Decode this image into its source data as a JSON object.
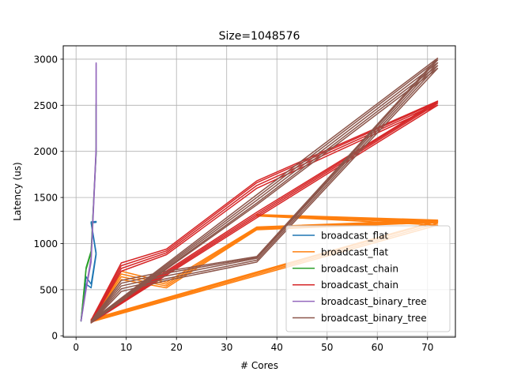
{
  "chart_data": {
    "type": "line",
    "title": "Size=1048576",
    "xlabel": "# Cores",
    "ylabel": "Latency (us)",
    "xlim": [
      -2.55,
      75.55
    ],
    "ylim": [
      -15,
      3145
    ],
    "xticks": [
      0,
      10,
      20,
      30,
      40,
      50,
      60,
      70
    ],
    "yticks": [
      0,
      500,
      1000,
      1500,
      2000,
      2500,
      3000
    ],
    "grid": true,
    "legend_position": "lower-right",
    "series": [
      {
        "name": "broadcast_flat",
        "color": "#1f77b4",
        "lines": [
          {
            "x": [
              1,
              2,
              3,
              4,
              3,
              4
            ],
            "y": [
              160,
              560,
              520,
              880,
              1225,
              1230
            ]
          },
          {
            "x": [
              1,
              2,
              3,
              4,
              3,
              4
            ],
            "y": [
              170,
              640,
              560,
              900,
              1235,
              1240
            ]
          }
        ]
      },
      {
        "name": "broadcast_flat",
        "color": "#ff7f0e",
        "lines": [
          {
            "x": [
              3,
              9,
              18,
              36,
              72,
              36,
              72,
              3
            ],
            "y": [
              140,
              610,
              520,
              1150,
              1230,
              1300,
              1200,
              150
            ]
          },
          {
            "x": [
              3,
              9,
              18,
              36,
              72,
              36,
              72,
              3
            ],
            "y": [
              145,
              640,
              540,
              1160,
              1240,
              1305,
              1220,
              160
            ]
          },
          {
            "x": [
              3,
              9,
              18,
              36,
              72,
              36,
              72,
              3
            ],
            "y": [
              150,
              670,
              560,
              1170,
              1250,
              1310,
              1240,
              170
            ]
          },
          {
            "x": [
              3,
              9,
              18,
              36,
              72,
              36,
              72,
              3
            ],
            "y": [
              155,
              700,
              580,
              1180,
              1255,
              1315,
              1250,
              180
            ]
          }
        ]
      },
      {
        "name": "broadcast_chain",
        "color": "#2ca02c",
        "lines": [
          {
            "x": [
              1,
              2,
              3,
              4,
              4
            ],
            "y": [
              160,
              720,
              900,
              1980,
              2500
            ]
          },
          {
            "x": [
              1,
              2,
              3,
              4,
              4
            ],
            "y": [
              170,
              740,
              920,
              2000,
              2520
            ]
          }
        ]
      },
      {
        "name": "broadcast_chain",
        "color": "#d62728",
        "lines": [
          {
            "x": [
              3,
              9,
              18,
              36,
              72,
              36,
              3
            ],
            "y": [
              140,
              700,
              880,
              1600,
              2500,
              1280,
              140
            ]
          },
          {
            "x": [
              3,
              9,
              18,
              36,
              72,
              36,
              3
            ],
            "y": [
              150,
              730,
              900,
              1630,
              2520,
              1300,
              150
            ]
          },
          {
            "x": [
              3,
              9,
              18,
              36,
              72,
              36,
              3
            ],
            "y": [
              160,
              760,
              920,
              1660,
              2535,
              1320,
              160
            ]
          },
          {
            "x": [
              3,
              9,
              18,
              36,
              72,
              36,
              3
            ],
            "y": [
              170,
              790,
              940,
              1680,
              2545,
              1340,
              170
            ]
          }
        ]
      },
      {
        "name": "broadcast_binary_tree",
        "color": "#9467bd",
        "lines": [
          {
            "x": [
              1,
              2,
              3,
              4,
              4
            ],
            "y": [
              160,
              500,
              800,
              2000,
              2950
            ]
          },
          {
            "x": [
              1,
              2,
              3,
              4,
              4
            ],
            "y": [
              170,
              520,
              850,
              2050,
              2960
            ]
          }
        ]
      },
      {
        "name": "broadcast_binary_tree",
        "color": "#8c564b",
        "lines": [
          {
            "x": [
              3,
              9,
              18,
              36,
              72,
              36,
              3
            ],
            "y": [
              140,
              480,
              600,
              800,
              2900,
              1420,
              140
            ]
          },
          {
            "x": [
              3,
              9,
              18,
              36,
              72,
              36,
              3
            ],
            "y": [
              145,
              510,
              620,
              820,
              2930,
              1440,
              145
            ]
          },
          {
            "x": [
              3,
              9,
              18,
              36,
              72,
              36,
              3
            ],
            "y": [
              150,
              540,
              650,
              840,
              2960,
              1470,
              150
            ]
          },
          {
            "x": [
              3,
              9,
              18,
              36,
              72,
              36,
              3
            ],
            "y": [
              155,
              570,
              680,
              850,
              2990,
              1500,
              155
            ]
          },
          {
            "x": [
              3,
              9,
              18,
              36,
              72,
              36,
              3
            ],
            "y": [
              160,
              600,
              700,
              860,
              3010,
              1530,
              160
            ]
          }
        ]
      }
    ]
  }
}
